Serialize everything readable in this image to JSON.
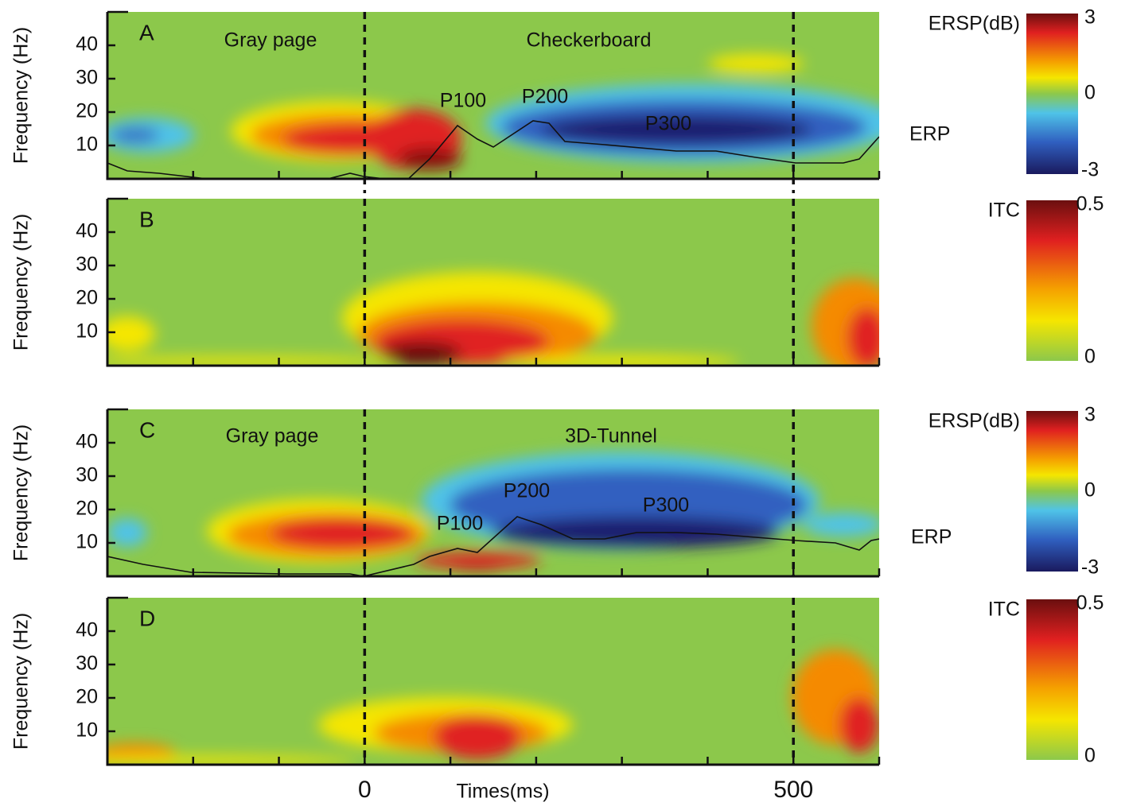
{
  "x_axis": {
    "label": "Times(ms)",
    "xlim": [
      -300,
      600
    ],
    "xticks": [
      0,
      500
    ],
    "minor_ticks": [
      -200,
      -100,
      100,
      200,
      300,
      400,
      600
    ]
  },
  "markers": [
    0,
    500
  ],
  "panels": [
    {
      "type": "heatmap",
      "letter": "A",
      "ylabel": "Frequency (Hz)",
      "ylim": [
        0,
        50
      ],
      "yticks": [
        10,
        20,
        30,
        40
      ],
      "annotations": [
        "Gray page",
        "Checkerboard",
        "P100",
        "P200",
        "P300",
        "ERP"
      ],
      "colorbar": {
        "label": "ERSP(dB)",
        "lim": [
          -3,
          3
        ],
        "ticks": [
          3,
          0,
          -3
        ]
      }
    },
    {
      "type": "heatmap",
      "letter": "B",
      "ylabel": "Frequency (Hz)",
      "ylim": [
        0,
        50
      ],
      "yticks": [
        10,
        20,
        30,
        40
      ],
      "annotations": [],
      "colorbar": {
        "label": "ITC",
        "lim": [
          0,
          0.5
        ],
        "ticks": [
          0.5,
          0
        ]
      }
    },
    {
      "type": "heatmap",
      "letter": "C",
      "ylabel": "Frequency (Hz)",
      "ylim": [
        0,
        50
      ],
      "yticks": [
        10,
        20,
        30,
        40
      ],
      "annotations": [
        "Gray page",
        "3D-Tunnel",
        "P100",
        "P200",
        "P300",
        "ERP"
      ],
      "colorbar": {
        "label": "ERSP(dB)",
        "lim": [
          -3,
          3
        ],
        "ticks": [
          3,
          0,
          -3
        ]
      }
    },
    {
      "type": "heatmap",
      "letter": "D",
      "ylabel": "Frequency (Hz)",
      "ylim": [
        0,
        50
      ],
      "yticks": [
        10,
        20,
        30,
        40
      ],
      "annotations": [],
      "colorbar": {
        "label": "ITC",
        "lim": [
          0,
          0.5
        ],
        "ticks": [
          0.5,
          0
        ]
      }
    }
  ]
}
